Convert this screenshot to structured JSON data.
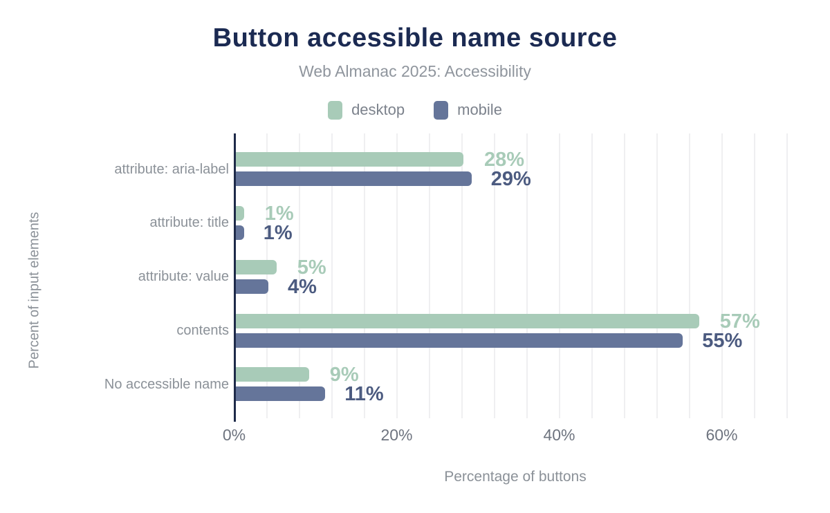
{
  "chart_data": {
    "type": "bar",
    "orientation": "horizontal",
    "title": "Button accessible name source",
    "subtitle": "Web Almanac 2025: Accessibility",
    "xlabel": "Percentage of buttons",
    "ylabel": "Percent of input elements",
    "categories": [
      "attribute: aria-label",
      "attribute: title",
      "attribute: value",
      "contents",
      "No accessible name"
    ],
    "series": [
      {
        "name": "desktop",
        "values": [
          28,
          1,
          5,
          57,
          9
        ],
        "labels": [
          "28%",
          "1%",
          "5%",
          "57%",
          "9%"
        ],
        "color": "#a8cbb8",
        "label_color": "#a8cbb8"
      },
      {
        "name": "mobile",
        "values": [
          29,
          1,
          4,
          55,
          11
        ],
        "labels": [
          "29%",
          "1%",
          "4%",
          "55%",
          "11%"
        ],
        "color": "#65759a",
        "label_color": "#4c5b80"
      }
    ],
    "x_ticks": [
      {
        "value": 0,
        "label": "0%"
      },
      {
        "value": 20,
        "label": "20%"
      },
      {
        "value": 40,
        "label": "40%"
      },
      {
        "value": 60,
        "label": "60%"
      }
    ],
    "xlim": [
      0,
      68.2
    ],
    "grid_step": 4,
    "grid": "vertical",
    "legend_position": "top"
  },
  "colors": {
    "title": "#1b2a52",
    "subtitle": "#8f959d",
    "axis_line": "#1e2a49",
    "gridline": "#efeff1",
    "category_label": "#8b9198",
    "tick_label": "#6e747f",
    "desktop": "#a8cbb8",
    "mobile": "#65759a",
    "mobile_value_label": "#4c5b80"
  }
}
